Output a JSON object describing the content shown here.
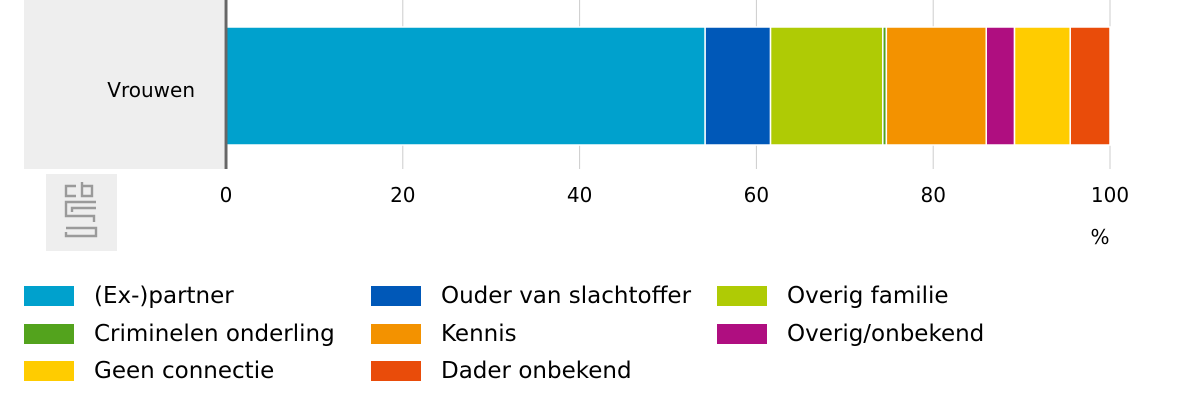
{
  "chart_data": {
    "type": "bar",
    "orientation": "horizontal",
    "stacked": true,
    "categories": [
      "Vrouwen"
    ],
    "series": [
      {
        "name": "(Ex-)partner",
        "values": [
          54.2
        ],
        "color": "#00a1cd"
      },
      {
        "name": "Ouder van slachtoffer",
        "values": [
          7.4
        ],
        "color": "#0058b8"
      },
      {
        "name": "Overig familie",
        "values": [
          12.7
        ],
        "color": "#afcb05"
      },
      {
        "name": "Criminelen onderling",
        "values": [
          0.4
        ],
        "color": "#53a31d"
      },
      {
        "name": "Kennis",
        "values": [
          11.3
        ],
        "color": "#f39200"
      },
      {
        "name": "Overig/onbekend",
        "values": [
          3.2
        ],
        "color": "#af0e80"
      },
      {
        "name": "Geen connectie",
        "values": [
          6.3
        ],
        "color": "#ffcc00"
      },
      {
        "name": "Dader onbekend",
        "values": [
          4.5
        ],
        "color": "#e94c0a"
      }
    ],
    "xlim": [
      0,
      100
    ],
    "xticks": [
      "0",
      "20",
      "40",
      "60",
      "80",
      "100"
    ],
    "xunit": "%",
    "grid": true,
    "legend_position": "bottom",
    "legend_order": [
      "(Ex-)partner",
      "Ouder van slachtoffer",
      "Overig familie",
      "Criminelen onderling",
      "Kennis",
      "Overig/onbekend",
      "Geen connectie",
      "Dader onbekend"
    ]
  },
  "logo_icon": "cbs-logo-icon"
}
